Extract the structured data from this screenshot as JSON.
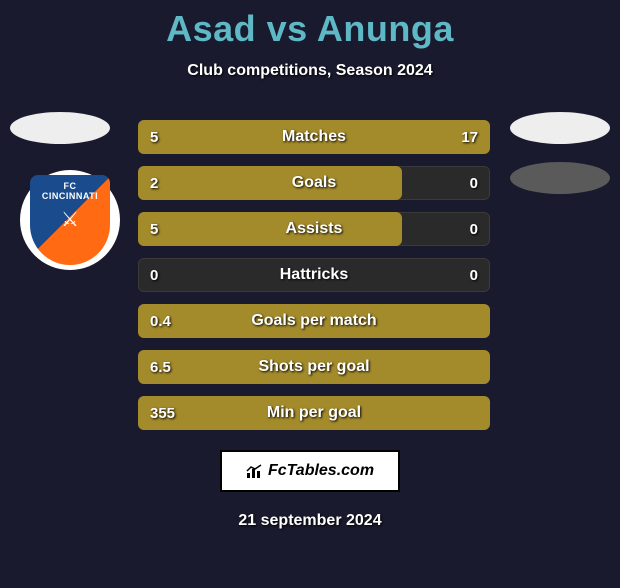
{
  "title": "Asad vs Anunga",
  "subtitle": "Club competitions, Season 2024",
  "date": "21 september 2024",
  "watermark": "FcTables.com",
  "colors": {
    "background": "#1a1a2e",
    "title": "#5fb8c5",
    "text": "#ffffff",
    "bar_fill": "#a38a2a",
    "bar_track": "#2a2a2a",
    "watermark_bg": "#ffffff",
    "watermark_border": "#000000"
  },
  "player_left": {
    "name": "Asad",
    "club": "FC Cincinnati",
    "badge": {
      "fc": "FC",
      "city": "CINCINNATI"
    }
  },
  "player_right": {
    "name": "Anunga"
  },
  "bars": [
    {
      "label": "Matches",
      "left": "5",
      "right": "17",
      "left_pct": 23,
      "right_pct": 77,
      "mode": "split"
    },
    {
      "label": "Goals",
      "left": "2",
      "right": "0",
      "left_pct": 75,
      "right_pct": 0,
      "mode": "left"
    },
    {
      "label": "Assists",
      "left": "5",
      "right": "0",
      "left_pct": 75,
      "right_pct": 0,
      "mode": "left"
    },
    {
      "label": "Hattricks",
      "left": "0",
      "right": "0",
      "left_pct": 0,
      "right_pct": 0,
      "mode": "none"
    },
    {
      "label": "Goals per match",
      "left": "0.4",
      "right": "",
      "left_pct": 100,
      "right_pct": 0,
      "mode": "full"
    },
    {
      "label": "Shots per goal",
      "left": "6.5",
      "right": "",
      "left_pct": 100,
      "right_pct": 0,
      "mode": "full"
    },
    {
      "label": "Min per goal",
      "left": "355",
      "right": "",
      "left_pct": 100,
      "right_pct": 0,
      "mode": "full"
    }
  ]
}
